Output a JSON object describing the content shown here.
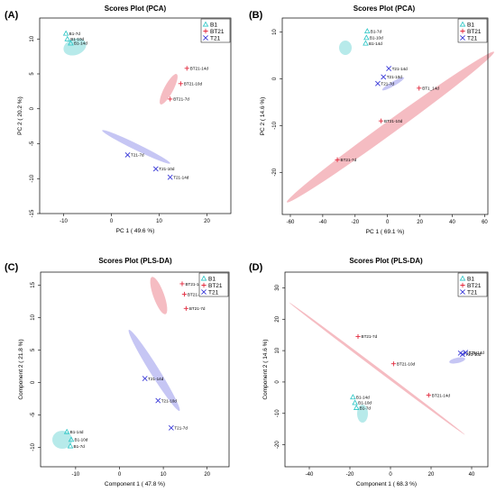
{
  "colors": {
    "B1": "#27c4c4",
    "BT21": "#e2283c",
    "T21": "#3a3ad8",
    "B1_fill": "#9fe3e3",
    "BT21_fill": "#f2a6ae",
    "T21_fill": "#b3b3f0"
  },
  "chart_data": [
    {
      "type": "scatter",
      "panel": "(A)",
      "title": "Scores Plot (PCA)",
      "xlabel": "PC 1 ( 49.6 %)",
      "ylabel": "PC 2 ( 20.2 %)",
      "xlim": [
        -15,
        25
      ],
      "ylim": [
        -15,
        13
      ],
      "xticks": [
        -10,
        0,
        10,
        20
      ],
      "yticks": [
        -15,
        -10,
        -5,
        0,
        5,
        10
      ],
      "grid": false,
      "legend_position": "top-right",
      "legend": [
        {
          "name": "B1",
          "marker": "triangle"
        },
        {
          "name": "BT21",
          "marker": "plus"
        },
        {
          "name": "T21",
          "marker": "cross"
        }
      ],
      "groups": [
        {
          "name": "B1",
          "marker": "triangle",
          "points": [
            {
              "label": "B1-7d",
              "x": -9.5,
              "y": 10.8
            },
            {
              "label": "B1-10d",
              "x": -9.2,
              "y": 10.0
            },
            {
              "label": "B1-14d",
              "x": -8.5,
              "y": 9.4
            }
          ]
        },
        {
          "name": "BT21",
          "marker": "plus",
          "points": [
            {
              "label": "BT21-14d",
              "x": 15.8,
              "y": 5.8
            },
            {
              "label": "BT21-10d",
              "x": 14.5,
              "y": 3.6
            },
            {
              "label": "BT21-7d",
              "x": 12.3,
              "y": 1.4
            }
          ]
        },
        {
          "name": "T21",
          "marker": "cross",
          "points": [
            {
              "label": "T21-7d",
              "x": 3.4,
              "y": -6.6
            },
            {
              "label": "T21-10d",
              "x": 9.3,
              "y": -8.6
            },
            {
              "label": "T21-14d",
              "x": 12.3,
              "y": -9.8
            }
          ]
        }
      ]
    },
    {
      "type": "scatter",
      "panel": "(B)",
      "title": "Scores Plot (PCA)",
      "xlabel": "PC 1 ( 69.1 %)",
      "ylabel": "PC 2 ( 14.6 %)",
      "xlim": [
        -65,
        62
      ],
      "ylim": [
        -29,
        13
      ],
      "xticks": [
        -60,
        -40,
        -20,
        0,
        20,
        40,
        60
      ],
      "yticks": [
        -20,
        -10,
        0,
        10
      ],
      "grid": false,
      "legend_position": "top-right",
      "legend": [
        {
          "name": "B1",
          "marker": "triangle"
        },
        {
          "name": "BT21",
          "marker": "plus"
        },
        {
          "name": "T21",
          "marker": "cross"
        }
      ],
      "groups": [
        {
          "name": "B1",
          "marker": "triangle",
          "points": [
            {
              "label": "B1-7d",
              "x": -12.5,
              "y": 10.2
            },
            {
              "label": "B1-10d",
              "x": -13.0,
              "y": 8.8
            },
            {
              "label": "B1-14d",
              "x": -13.5,
              "y": 7.6
            }
          ]
        },
        {
          "name": "BT21",
          "marker": "plus",
          "points": [
            {
              "label": "BT1_14d",
              "x": 19.5,
              "y": -2.0
            },
            {
              "label": "BT21-10d",
              "x": -4.0,
              "y": -9.0
            },
            {
              "label": "BT21-7d",
              "x": -31.0,
              "y": -17.3
            }
          ]
        },
        {
          "name": "T21",
          "marker": "cross",
          "points": [
            {
              "label": "T21-14d",
              "x": 0.8,
              "y": 2.2
            },
            {
              "label": "T21-10d",
              "x": -2.5,
              "y": 0.4
            },
            {
              "label": "T21-7d",
              "x": -6.0,
              "y": -1.0
            }
          ]
        }
      ]
    },
    {
      "type": "scatter",
      "panel": "(C)",
      "title": "Scores Plot (PLS-DA)",
      "xlabel": "Component 1 ( 47.8 %)",
      "ylabel": "Component 2 ( 21.8 %)",
      "xlim": [
        -18,
        25
      ],
      "ylim": [
        -13,
        17
      ],
      "xticks": [
        -10,
        0,
        10,
        20
      ],
      "yticks": [
        -10,
        -5,
        0,
        5,
        10,
        15
      ],
      "grid": false,
      "legend_position": "top-right",
      "legend": [
        {
          "name": "B1",
          "marker": "triangle"
        },
        {
          "name": "BT21",
          "marker": "plus"
        },
        {
          "name": "T21",
          "marker": "cross"
        }
      ],
      "groups": [
        {
          "name": "B1",
          "marker": "triangle",
          "points": [
            {
              "label": "B1-14d",
              "x": -12.0,
              "y": -7.6
            },
            {
              "label": "B1-10d",
              "x": -11.0,
              "y": -8.8
            },
            {
              "label": "B1-7d",
              "x": -11.2,
              "y": -9.8
            }
          ]
        },
        {
          "name": "BT21",
          "marker": "plus",
          "points": [
            {
              "label": "BT21-14d",
              "x": 14.3,
              "y": 15.2
            },
            {
              "label": "BT21-10d",
              "x": 14.8,
              "y": 13.6
            },
            {
              "label": "BT21-7d",
              "x": 15.2,
              "y": 11.4
            }
          ]
        },
        {
          "name": "T21",
          "marker": "cross",
          "points": [
            {
              "label": "T21-14d",
              "x": 5.8,
              "y": 0.6
            },
            {
              "label": "T21-10d",
              "x": 8.8,
              "y": -2.8
            },
            {
              "label": "T21-7d",
              "x": 11.8,
              "y": -7.0
            }
          ]
        }
      ]
    },
    {
      "type": "scatter",
      "panel": "(D)",
      "title": "Scores Plot (PLS-DA)",
      "xlabel": "Component 1 ( 68.3 %)",
      "ylabel": "Component 2 ( 14.6 %)",
      "xlim": [
        -52,
        48
      ],
      "ylim": [
        -27,
        35
      ],
      "xticks": [
        -40,
        -20,
        0,
        20,
        40
      ],
      "yticks": [
        -20,
        -10,
        0,
        10,
        20,
        30
      ],
      "grid": false,
      "legend_position": "top-right",
      "legend": [
        {
          "name": "B1",
          "marker": "triangle"
        },
        {
          "name": "BT21",
          "marker": "plus"
        },
        {
          "name": "T21",
          "marker": "cross"
        }
      ],
      "groups": [
        {
          "name": "B1",
          "marker": "triangle",
          "points": [
            {
              "label": "B1-14d",
              "x": -18.5,
              "y": -4.8
            },
            {
              "label": "B1-10d",
              "x": -17.5,
              "y": -6.6
            },
            {
              "label": "B1-7d",
              "x": -16.8,
              "y": -8.2
            }
          ]
        },
        {
          "name": "BT21",
          "marker": "plus",
          "points": [
            {
              "label": "BT21-7d",
              "x": -16.0,
              "y": 14.5
            },
            {
              "label": "BT21-10d",
              "x": 1.5,
              "y": 5.8
            },
            {
              "label": "BT21-14d",
              "x": 18.8,
              "y": -4.2
            }
          ]
        },
        {
          "name": "T21",
          "marker": "cross",
          "points": [
            {
              "label": "T21-7d",
              "x": 34.5,
              "y": 9.2
            },
            {
              "label": "T21-10d",
              "x": 35.5,
              "y": 8.8
            },
            {
              "label": "T21-14d",
              "x": 37.0,
              "y": 9.4
            }
          ]
        }
      ]
    }
  ]
}
